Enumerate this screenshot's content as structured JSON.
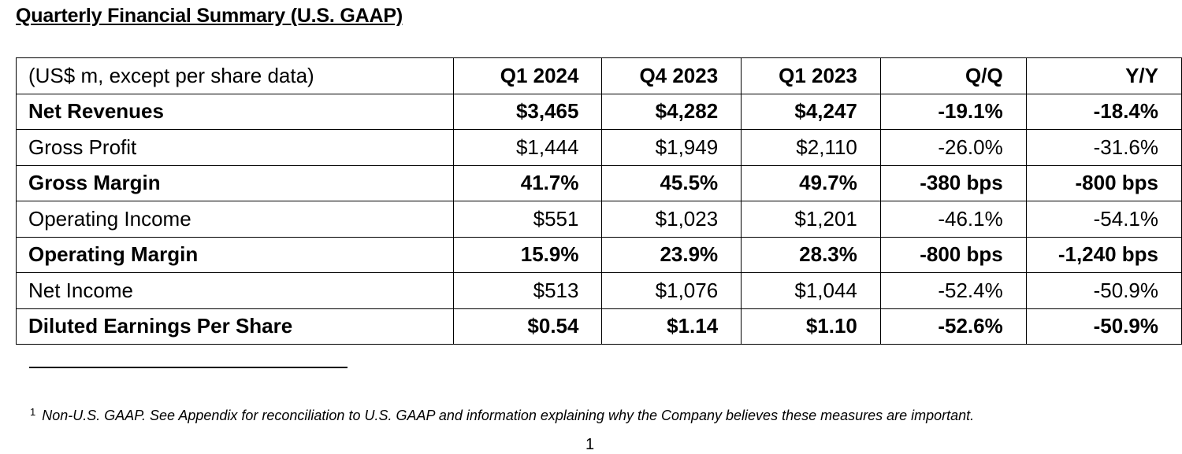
{
  "title": "Quarterly Financial Summary (U.S. GAAP)",
  "table": {
    "header": [
      "(US$ m, except per share data)",
      "Q1 2024",
      "Q4 2023",
      "Q1 2023",
      "Q/Q",
      "Y/Y"
    ],
    "rows": [
      {
        "bold": true,
        "cells": [
          "Net Revenues",
          "$3,465",
          "$4,282",
          "$4,247",
          "-19.1%",
          "-18.4%"
        ]
      },
      {
        "bold": false,
        "cells": [
          "Gross Profit",
          "$1,444",
          "$1,949",
          "$2,110",
          "-26.0%",
          "-31.6%"
        ]
      },
      {
        "bold": true,
        "cells": [
          "Gross Margin",
          "41.7%",
          "45.5%",
          "49.7%",
          "-380 bps",
          "-800 bps"
        ]
      },
      {
        "bold": false,
        "cells": [
          "Operating Income",
          "$551",
          "$1,023",
          "$1,201",
          "-46.1%",
          "-54.1%"
        ]
      },
      {
        "bold": true,
        "cells": [
          "Operating Margin",
          "15.9%",
          "23.9%",
          "28.3%",
          "-800 bps",
          "-1,240 bps"
        ]
      },
      {
        "bold": false,
        "cells": [
          "Net Income",
          "$513",
          "$1,076",
          "$1,044",
          "-52.4%",
          "-50.9%"
        ]
      },
      {
        "bold": true,
        "cells": [
          "Diluted Earnings Per Share",
          "$0.54",
          "$1.14",
          "$1.10",
          "-52.6%",
          "-50.9%"
        ]
      }
    ]
  },
  "footnote": {
    "marker": "1",
    "text": "Non-U.S. GAAP. See Appendix for reconciliation to U.S. GAAP and information explaining why the Company believes these measures are important."
  },
  "page_number": "1"
}
